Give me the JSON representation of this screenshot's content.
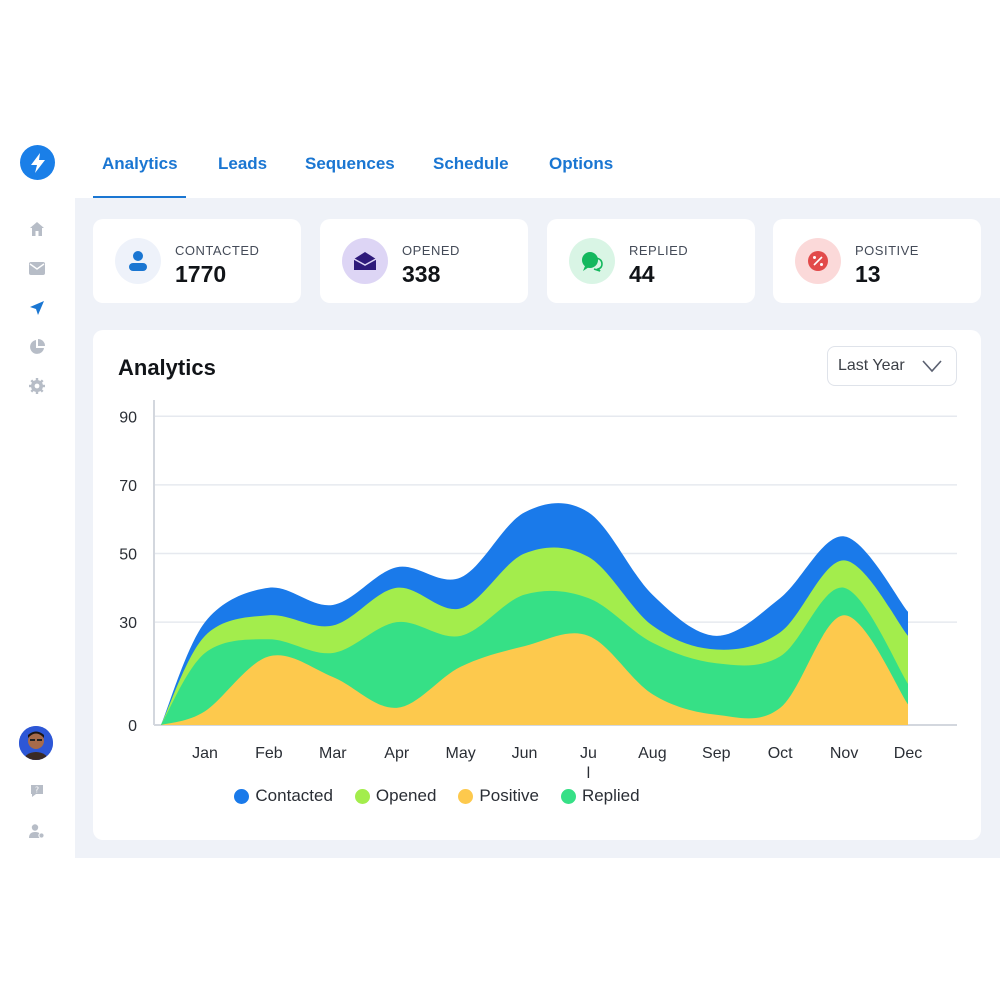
{
  "nav": {
    "tabs": [
      {
        "label": "Analytics",
        "active": true
      },
      {
        "label": "Leads",
        "active": false
      },
      {
        "label": "Sequences",
        "active": false
      },
      {
        "label": "Schedule",
        "active": false
      },
      {
        "label": "Options",
        "active": false
      }
    ]
  },
  "sidebar": {
    "icons": [
      "home-icon",
      "mail-icon",
      "send-icon",
      "pie-chart-icon",
      "gear-icon"
    ],
    "bottom_icons": [
      "help-icon",
      "user-settings-icon"
    ]
  },
  "stats": [
    {
      "label": "CONTACTED",
      "value": "1770",
      "icon": "user-icon",
      "color": "#1a76d2",
      "bg": "#eef2fa"
    },
    {
      "label": "OPENED",
      "value": "338",
      "icon": "envelope-icon",
      "color": "#2e1a7a",
      "bg": "#ddd5f5"
    },
    {
      "label": "REPLIED",
      "value": "44",
      "icon": "chat-icon",
      "color": "#14b85e",
      "bg": "#d9f5e5"
    },
    {
      "label": "POSITIVE",
      "value": "13",
      "icon": "percent-icon",
      "color": "#e24a4a",
      "bg": "#fbd9d9"
    }
  ],
  "chart_card": {
    "title": "Analytics",
    "period": "Last Year"
  },
  "chart_data": {
    "type": "area",
    "categories": [
      "Jan",
      "Feb",
      "Mar",
      "Apr",
      "May",
      "Jun",
      "Jul",
      "Aug",
      "Sep",
      "Oct",
      "Nov",
      "Dec"
    ],
    "x_tick_labels": [
      "Jan",
      "Feb",
      "Mar",
      "Apr",
      "May",
      "Jun",
      "Ju\nl",
      "Aug",
      "Sep",
      "Oct",
      "Nov",
      "Dec"
    ],
    "y_ticks": [
      0,
      30,
      50,
      70,
      90
    ],
    "ylim": [
      0,
      95
    ],
    "stacked": true,
    "series": [
      {
        "name": "Positive",
        "color": "#fdc94d",
        "values": [
          4,
          20,
          14,
          5,
          17,
          23,
          26,
          9,
          3,
          5,
          32,
          6
        ]
      },
      {
        "name": "Replied",
        "color": "#36e086",
        "values": [
          21,
          25,
          21,
          30,
          26,
          38,
          37,
          24,
          18,
          20,
          40,
          12
        ]
      },
      {
        "name": "Opened",
        "color": "#a3ed4c",
        "values": [
          26,
          32,
          29,
          40,
          34,
          50,
          49,
          29,
          22,
          27,
          48,
          26
        ]
      },
      {
        "name": "Contacted",
        "color": "#1a7aea",
        "values": [
          30,
          40,
          35,
          46,
          43,
          62,
          62,
          38,
          26,
          37,
          55,
          33
        ]
      }
    ],
    "legend": [
      {
        "name": "Contacted",
        "color": "#1a7aea"
      },
      {
        "name": "Opened",
        "color": "#a3ed4c"
      },
      {
        "name": "Positive",
        "color": "#fdc94d"
      },
      {
        "name": "Replied",
        "color": "#36e086"
      }
    ],
    "legend_position": "bottom"
  }
}
